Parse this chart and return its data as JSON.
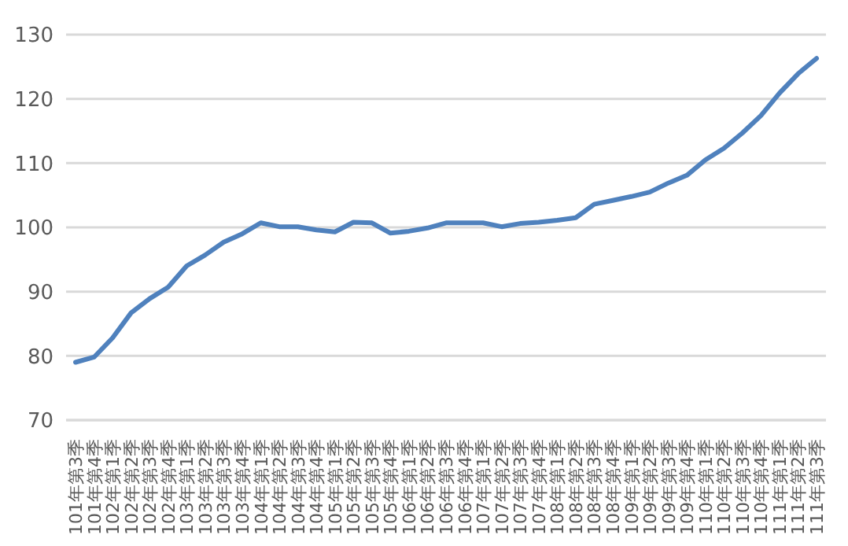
{
  "chart_data": {
    "type": "line",
    "categories": [
      "101年第3季",
      "101年第4季",
      "102年第1季",
      "102年第2季",
      "102年第3季",
      "102年第4季",
      "103年第1季",
      "103年第2季",
      "103年第3季",
      "103年第4季",
      "104年第1季",
      "104年第2季",
      "104年第3季",
      "104年第4季",
      "105年第1季",
      "105年第2季",
      "105年第3季",
      "105年第4季",
      "106年第1季",
      "106年第2季",
      "106年第3季",
      "106年第4季",
      "107年第1季",
      "107年第2季",
      "107年第3季",
      "107年第4季",
      "108年第1季",
      "108年第2季",
      "108年第3季",
      "108年第4季",
      "109年第1季",
      "109年第2季",
      "109年第3季",
      "109年第4季",
      "110年第1季",
      "110年第2季",
      "110年第3季",
      "110年第4季",
      "111年第1季",
      "111年第2季",
      "111年第3季"
    ],
    "series": [
      {
        "color": "#4f81bd",
        "values": [
          79,
          79.8,
          82.8,
          86.7,
          88.9,
          90.7,
          94,
          95.7,
          97.7,
          99,
          100.7,
          100.1,
          100.1,
          99.6,
          99.3,
          100.8,
          100.7,
          99.1,
          99.4,
          99.9,
          100.7,
          100.7,
          100.7,
          100.1,
          100.6,
          100.8,
          101.1,
          101.5,
          103.6,
          104.2,
          104.8,
          105.5,
          106.9,
          108.1,
          110.5,
          112.3,
          114.7,
          117.4,
          120.9,
          123.9,
          126.3
        ]
      }
    ],
    "ylim": [
      70,
      130
    ],
    "yticks": [
      70,
      80,
      90,
      100,
      110,
      120,
      130
    ],
    "grid": "y",
    "legend": false,
    "marker": "none",
    "line_style": "solid"
  }
}
